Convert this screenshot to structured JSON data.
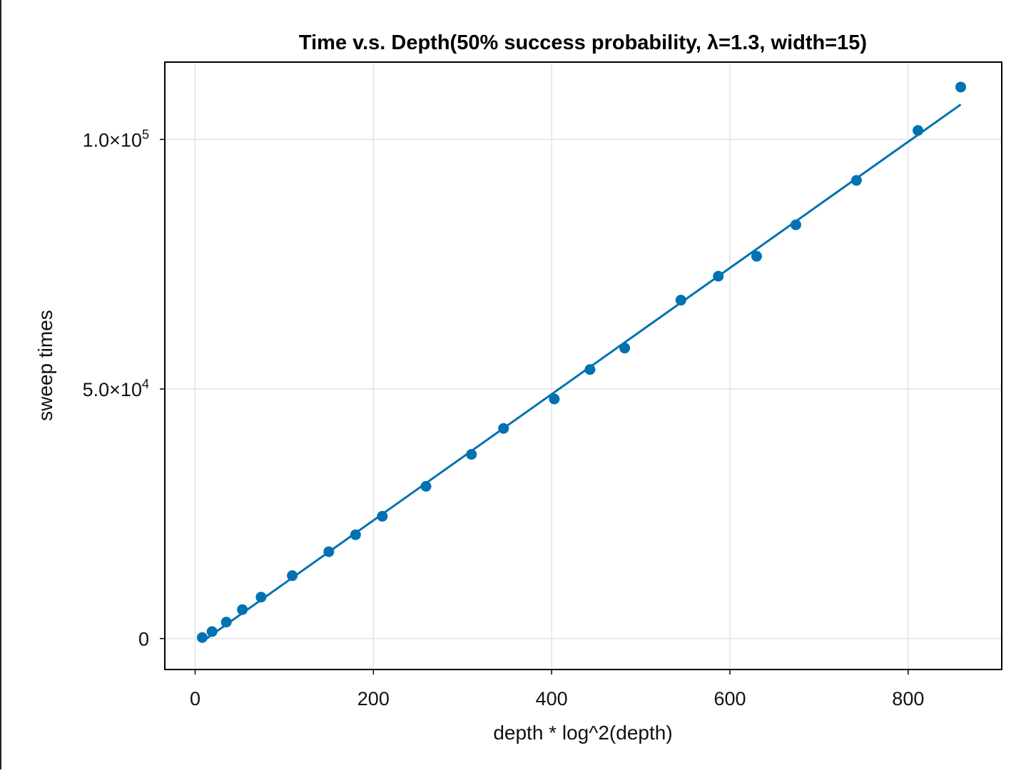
{
  "chart_data": {
    "type": "scatter",
    "title": "Time v.s. Depth(50% success probability, λ=1.3, width=15)",
    "xlabel": "depth * log^2(depth)",
    "ylabel": "sweep times",
    "xlim": [
      -34,
      905
    ],
    "ylim": [
      -6200,
      115500
    ],
    "grid": true,
    "x_ticks": [
      {
        "value": 0,
        "label": "0"
      },
      {
        "value": 200,
        "label": "200"
      },
      {
        "value": 400,
        "label": "400"
      },
      {
        "value": 600,
        "label": "600"
      },
      {
        "value": 800,
        "label": "800"
      }
    ],
    "y_ticks": [
      {
        "value": 0,
        "mantissa": "0",
        "exponent": ""
      },
      {
        "value": 50000,
        "mantissa": "5.0×10",
        "exponent": "4"
      },
      {
        "value": 100000,
        "mantissa": "1.0×10",
        "exponent": "5"
      }
    ],
    "colors": {
      "points": "#0072b2",
      "fit_line": "#0072b2"
    },
    "series": [
      {
        "kind": "points",
        "x": [
          8,
          19,
          35,
          53,
          74,
          109,
          150,
          180,
          210,
          259,
          310,
          346,
          403,
          443,
          482,
          545,
          587,
          630,
          674,
          742,
          811,
          859
        ],
        "y": [
          200,
          1400,
          3300,
          5800,
          8300,
          12600,
          17400,
          20800,
          24500,
          30500,
          36900,
          42100,
          48000,
          53900,
          58200,
          67800,
          72600,
          76600,
          82900,
          91800,
          101800,
          110500
        ]
      },
      {
        "kind": "line",
        "x": [
          8,
          859
        ],
        "y": [
          -600,
          107000
        ]
      }
    ]
  }
}
